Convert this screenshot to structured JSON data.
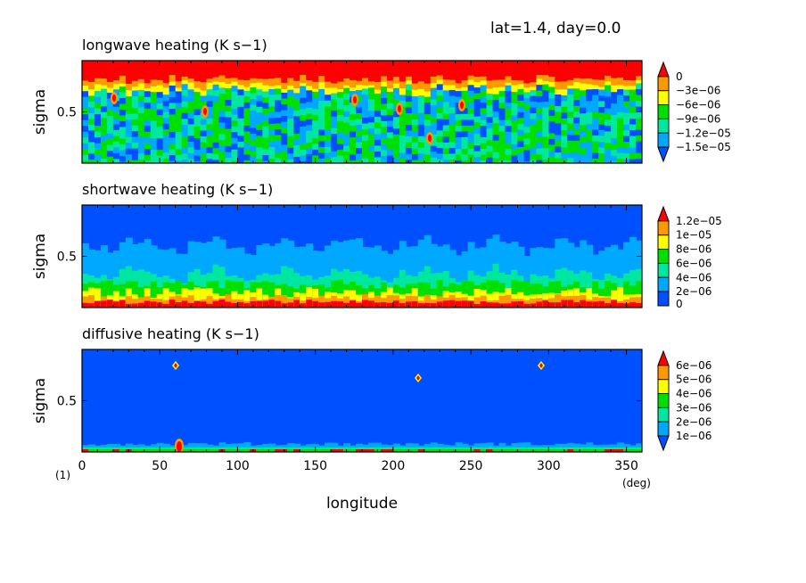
{
  "header": "lat=1.4, day=0.0",
  "xlabel": "longitude",
  "x_unit": "(deg)",
  "y_unit": "(1)",
  "colors": {
    "red": "#ff0000",
    "orange": "#ff9900",
    "yellow": "#ffff00",
    "green": "#00e000",
    "teal": "#00e8a0",
    "lightblue": "#00a8ff",
    "blue": "#0050ff"
  },
  "chart_data": [
    {
      "type": "heatmap",
      "title": "longwave heating (K s−1)",
      "ylabel": "sigma",
      "xlim": [
        0,
        360
      ],
      "ylim": [
        0,
        1
      ],
      "x_ticks": [
        "0",
        "50",
        "100",
        "150",
        "200",
        "250",
        "300",
        "350"
      ],
      "y_ticks": [
        "0.5"
      ],
      "legend_levels": [
        "0",
        "−3e−06",
        "−6e−06",
        "−9e−06",
        "−1.2e−05",
        "−1.5e−05"
      ],
      "legend_colors": [
        "#ff0000",
        "#ff9900",
        "#ffff00",
        "#00e000",
        "#00e8a0",
        "#00a8ff",
        "#0050ff"
      ]
    },
    {
      "type": "heatmap",
      "title": "shortwave heating (K s−1)",
      "ylabel": "sigma",
      "xlim": [
        0,
        360
      ],
      "ylim": [
        0,
        1
      ],
      "x_ticks": [
        "0",
        "50",
        "100",
        "150",
        "200",
        "250",
        "300",
        "350"
      ],
      "y_ticks": [
        "0.5"
      ],
      "legend_levels": [
        "1.2e−05",
        "1e−05",
        "8e−06",
        "6e−06",
        "4e−06",
        "2e−06",
        "0"
      ],
      "legend_colors": [
        "#ff0000",
        "#ff9900",
        "#ffff00",
        "#00e000",
        "#00e8a0",
        "#00a8ff",
        "#0050ff"
      ]
    },
    {
      "type": "heatmap",
      "title": "diffusive heating (K s−1)",
      "ylabel": "sigma",
      "xlim": [
        0,
        360
      ],
      "ylim": [
        0,
        1
      ],
      "x_ticks": [
        "0",
        "50",
        "100",
        "150",
        "200",
        "250",
        "300",
        "350"
      ],
      "y_ticks": [
        "0.5"
      ],
      "legend_levels": [
        "6e−06",
        "5e−06",
        "4e−06",
        "3e−06",
        "2e−06",
        "1e−06"
      ],
      "legend_colors": [
        "#ff0000",
        "#ff9900",
        "#ffff00",
        "#00e000",
        "#00e8a0",
        "#00a8ff",
        "#0050ff"
      ]
    }
  ]
}
